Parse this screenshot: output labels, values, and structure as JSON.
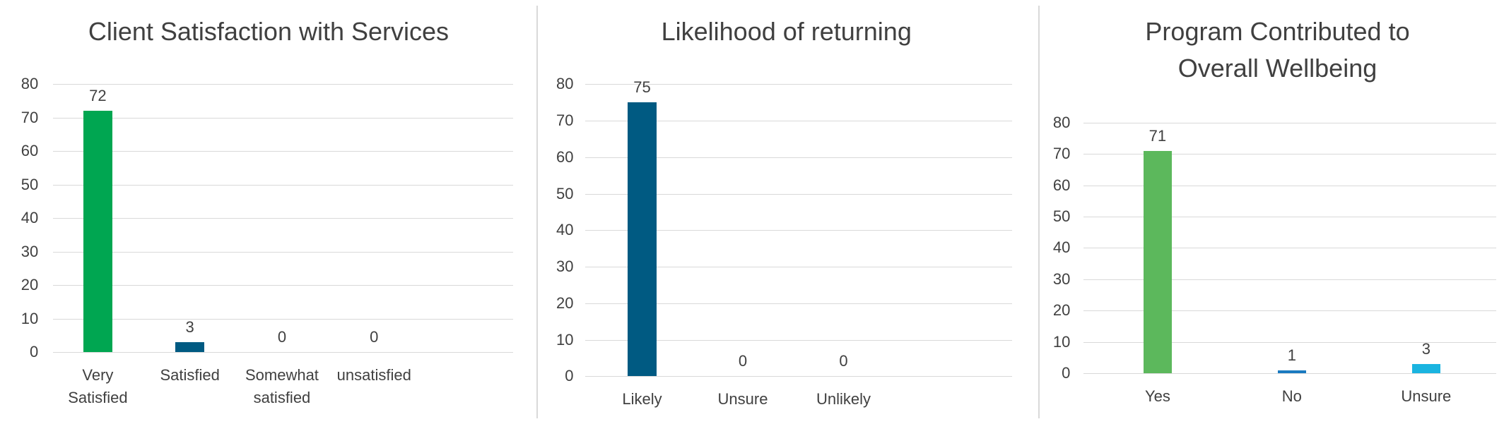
{
  "chart_data": [
    {
      "type": "bar",
      "title": "Client Satisfaction with Services",
      "categories": [
        "Very Satisfied",
        "Satisfied",
        "Somewhat satisfied",
        "unsatisfied"
      ],
      "values": [
        72,
        3,
        0,
        0
      ],
      "colors": [
        "#00a651",
        "#005a82",
        "#005a82",
        "#005a82"
      ],
      "ylim": [
        0,
        80
      ],
      "yticks": [
        0,
        10,
        20,
        30,
        40,
        50,
        60,
        70,
        80
      ],
      "grid": true
    },
    {
      "type": "bar",
      "title": "Likelihood of returning",
      "categories": [
        "Likely",
        "Unsure",
        "Unlikely"
      ],
      "values": [
        75,
        0,
        0
      ],
      "colors": [
        "#005a82",
        "#005a82",
        "#005a82"
      ],
      "ylim": [
        0,
        80
      ],
      "yticks": [
        0,
        10,
        20,
        30,
        40,
        50,
        60,
        70,
        80
      ],
      "grid": true
    },
    {
      "type": "bar",
      "title": "Program Contributed to Overall Wellbeing",
      "categories": [
        "Yes",
        "No",
        "Unsure"
      ],
      "values": [
        71,
        1,
        3
      ],
      "colors": [
        "#5cb85c",
        "#1a7ac0",
        "#1ab4e0"
      ],
      "ylim": [
        0,
        80
      ],
      "yticks": [
        0,
        10,
        20,
        30,
        40,
        50,
        60,
        70,
        80
      ],
      "grid": true
    }
  ]
}
